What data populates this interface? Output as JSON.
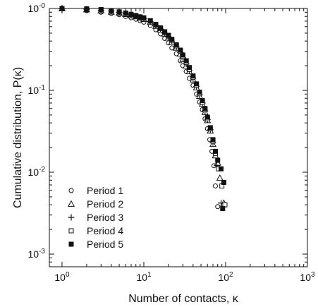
{
  "chart_data": {
    "type": "scatter",
    "xlabel": "Number of contacts, κ",
    "ylabel": "Cumulative distribution, P(κ)",
    "xscale": "log",
    "yscale": "log",
    "xlim": [
      0.7,
      1000
    ],
    "ylim": [
      0.0007,
      1.0
    ],
    "x_ticks": [
      {
        "value": 1,
        "base": "10",
        "exp": "0"
      },
      {
        "value": 10,
        "base": "10",
        "exp": "1"
      },
      {
        "value": 100,
        "base": "10",
        "exp": "2"
      },
      {
        "value": 1000,
        "base": "10",
        "exp": "3"
      }
    ],
    "y_ticks": [
      {
        "value": 0.001,
        "base": "10",
        "exp": "-3"
      },
      {
        "value": 0.01,
        "base": "10",
        "exp": "-2"
      },
      {
        "value": 0.1,
        "base": "10",
        "exp": "-1"
      },
      {
        "value": 1,
        "base": "10",
        "exp": "-0"
      }
    ],
    "grid": false,
    "legend_position": "bottom-left",
    "series": [
      {
        "name": "Period 1",
        "marker": "circle-open",
        "points": [
          [
            1,
            1.0
          ],
          [
            2,
            0.94
          ],
          [
            3,
            0.9
          ],
          [
            4,
            0.87
          ],
          [
            5,
            0.84
          ],
          [
            6,
            0.8
          ],
          [
            7,
            0.77
          ],
          [
            8,
            0.74
          ],
          [
            9,
            0.71
          ],
          [
            10,
            0.68
          ],
          [
            12,
            0.62
          ],
          [
            14,
            0.55
          ],
          [
            16,
            0.49
          ],
          [
            18,
            0.43
          ],
          [
            20,
            0.38
          ],
          [
            22,
            0.33
          ],
          [
            25,
            0.28
          ],
          [
            28,
            0.23
          ],
          [
            30,
            0.2
          ],
          [
            33,
            0.17
          ],
          [
            36,
            0.14
          ],
          [
            40,
            0.115
          ],
          [
            44,
            0.09
          ],
          [
            48,
            0.072
          ],
          [
            52,
            0.058
          ],
          [
            56,
            0.045
          ],
          [
            60,
            0.034
          ],
          [
            64,
            0.025
          ],
          [
            68,
            0.018
          ],
          [
            72,
            0.012
          ],
          [
            75,
            0.0068
          ],
          [
            80,
            0.0038
          ]
        ]
      },
      {
        "name": "Period 2",
        "marker": "triangle-open",
        "points": [
          [
            1,
            1.0
          ],
          [
            2,
            0.97
          ],
          [
            3,
            0.94
          ],
          [
            4,
            0.91
          ],
          [
            5,
            0.88
          ],
          [
            6,
            0.85
          ],
          [
            7,
            0.82
          ],
          [
            8,
            0.8
          ],
          [
            9,
            0.77
          ],
          [
            10,
            0.74
          ],
          [
            12,
            0.68
          ],
          [
            14,
            0.61
          ],
          [
            16,
            0.55
          ],
          [
            18,
            0.49
          ],
          [
            20,
            0.44
          ],
          [
            22,
            0.39
          ],
          [
            25,
            0.33
          ],
          [
            28,
            0.28
          ],
          [
            30,
            0.24
          ],
          [
            33,
            0.2
          ],
          [
            36,
            0.17
          ],
          [
            40,
            0.135
          ],
          [
            44,
            0.108
          ],
          [
            48,
            0.085
          ],
          [
            52,
            0.068
          ],
          [
            56,
            0.054
          ],
          [
            60,
            0.043
          ],
          [
            65,
            0.032
          ],
          [
            70,
            0.022
          ],
          [
            75,
            0.016
          ],
          [
            80,
            0.013
          ],
          [
            85,
            0.0085
          ],
          [
            95,
            0.0042
          ]
        ]
      },
      {
        "name": "Period 3",
        "marker": "plus",
        "points": [
          [
            1,
            1.0
          ],
          [
            2,
            0.98
          ],
          [
            3,
            0.95
          ],
          [
            4,
            0.93
          ],
          [
            5,
            0.9
          ],
          [
            6,
            0.87
          ],
          [
            7,
            0.84
          ],
          [
            8,
            0.81
          ],
          [
            9,
            0.78
          ],
          [
            10,
            0.75
          ],
          [
            12,
            0.69
          ],
          [
            14,
            0.62
          ],
          [
            16,
            0.56
          ],
          [
            18,
            0.5
          ],
          [
            20,
            0.45
          ],
          [
            22,
            0.4
          ],
          [
            25,
            0.34
          ],
          [
            28,
            0.29
          ],
          [
            30,
            0.25
          ],
          [
            33,
            0.21
          ],
          [
            36,
            0.175
          ],
          [
            40,
            0.14
          ],
          [
            44,
            0.112
          ],
          [
            48,
            0.088
          ],
          [
            52,
            0.07
          ],
          [
            56,
            0.056
          ],
          [
            60,
            0.044
          ],
          [
            65,
            0.033
          ],
          [
            70,
            0.023
          ],
          [
            78,
            0.012
          ],
          [
            88,
            0.0042
          ]
        ]
      },
      {
        "name": "Period 4",
        "marker": "square-open",
        "points": [
          [
            1,
            1.0
          ],
          [
            2,
            0.98
          ],
          [
            3,
            0.96
          ],
          [
            4,
            0.93
          ],
          [
            5,
            0.9
          ],
          [
            6,
            0.87
          ],
          [
            7,
            0.84
          ],
          [
            8,
            0.81
          ],
          [
            9,
            0.78
          ],
          [
            10,
            0.76
          ],
          [
            12,
            0.7
          ],
          [
            14,
            0.63
          ],
          [
            16,
            0.57
          ],
          [
            18,
            0.51
          ],
          [
            20,
            0.46
          ],
          [
            22,
            0.41
          ],
          [
            25,
            0.35
          ],
          [
            28,
            0.3
          ],
          [
            30,
            0.26
          ],
          [
            33,
            0.22
          ],
          [
            36,
            0.18
          ],
          [
            40,
            0.145
          ],
          [
            44,
            0.115
          ],
          [
            48,
            0.091
          ],
          [
            52,
            0.072
          ],
          [
            56,
            0.058
          ],
          [
            60,
            0.045
          ],
          [
            65,
            0.034
          ],
          [
            70,
            0.024
          ],
          [
            75,
            0.017
          ],
          [
            82,
            0.011
          ],
          [
            90,
            0.0068
          ],
          [
            98,
            0.004
          ]
        ]
      },
      {
        "name": "Period 5",
        "marker": "square-filled",
        "points": [
          [
            1,
            1.0
          ],
          [
            2,
            0.99
          ],
          [
            3,
            0.97
          ],
          [
            4,
            0.94
          ],
          [
            5,
            0.91
          ],
          [
            6,
            0.88
          ],
          [
            7,
            0.85
          ],
          [
            8,
            0.82
          ],
          [
            9,
            0.79
          ],
          [
            10,
            0.77
          ],
          [
            12,
            0.71
          ],
          [
            14,
            0.64
          ],
          [
            16,
            0.58
          ],
          [
            18,
            0.52
          ],
          [
            20,
            0.47
          ],
          [
            22,
            0.42
          ],
          [
            25,
            0.36
          ],
          [
            28,
            0.31
          ],
          [
            30,
            0.27
          ],
          [
            33,
            0.23
          ],
          [
            36,
            0.19
          ],
          [
            40,
            0.15
          ],
          [
            44,
            0.12
          ],
          [
            48,
            0.095
          ],
          [
            52,
            0.075
          ],
          [
            56,
            0.06
          ],
          [
            60,
            0.047
          ],
          [
            65,
            0.035
          ],
          [
            70,
            0.025
          ],
          [
            75,
            0.018
          ],
          [
            80,
            0.014
          ],
          [
            88,
            0.011
          ],
          [
            95,
            0.0075
          ],
          [
            92,
            0.0036
          ]
        ]
      }
    ]
  }
}
